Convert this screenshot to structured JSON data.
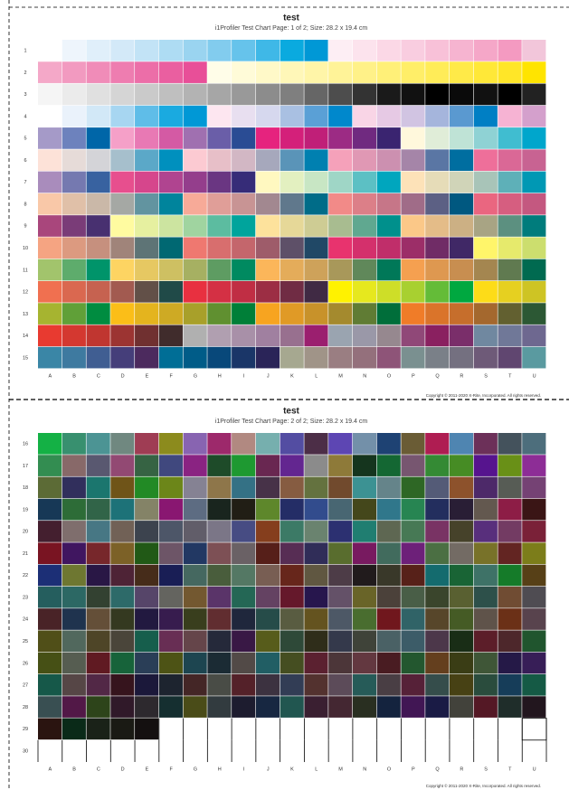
{
  "pages": [
    {
      "title": "test",
      "subtitle": "i1Profiler Test Chart Page: 1 of 2; Size: 28.2 x 19.4 cm",
      "rows": [
        "1",
        "2",
        "3",
        "4",
        "5",
        "6",
        "7",
        "8",
        "9",
        "10",
        "11",
        "12",
        "13",
        "14",
        "15"
      ],
      "columns": [
        "A",
        "B",
        "C",
        "D",
        "E",
        "F",
        "G",
        "H",
        "I",
        "J",
        "K",
        "L",
        "M",
        "N",
        "O",
        "P",
        "Q",
        "R",
        "S",
        "T",
        "U"
      ],
      "copyright": "Copyright © 2011-2020 X-Rite, Incorporated. All rights reserved."
    },
    {
      "title": "test",
      "subtitle": "i1Profiler Test Chart Page: 2 of 2; Size: 28.2 x 19.4 cm",
      "rows": [
        "16",
        "17",
        "18",
        "19",
        "20",
        "21",
        "22",
        "23",
        "24",
        "25",
        "26",
        "27",
        "28",
        "29",
        "30"
      ],
      "columns": [
        "A",
        "B",
        "C",
        "D",
        "E",
        "F",
        "G",
        "H",
        "I",
        "J",
        "K",
        "L",
        "M",
        "N",
        "O",
        "P",
        "Q",
        "R",
        "S",
        "T",
        "U"
      ],
      "copyright": "Copyright © 2011-2020 X-Rite, Incorporated. All rights reserved."
    }
  ]
}
